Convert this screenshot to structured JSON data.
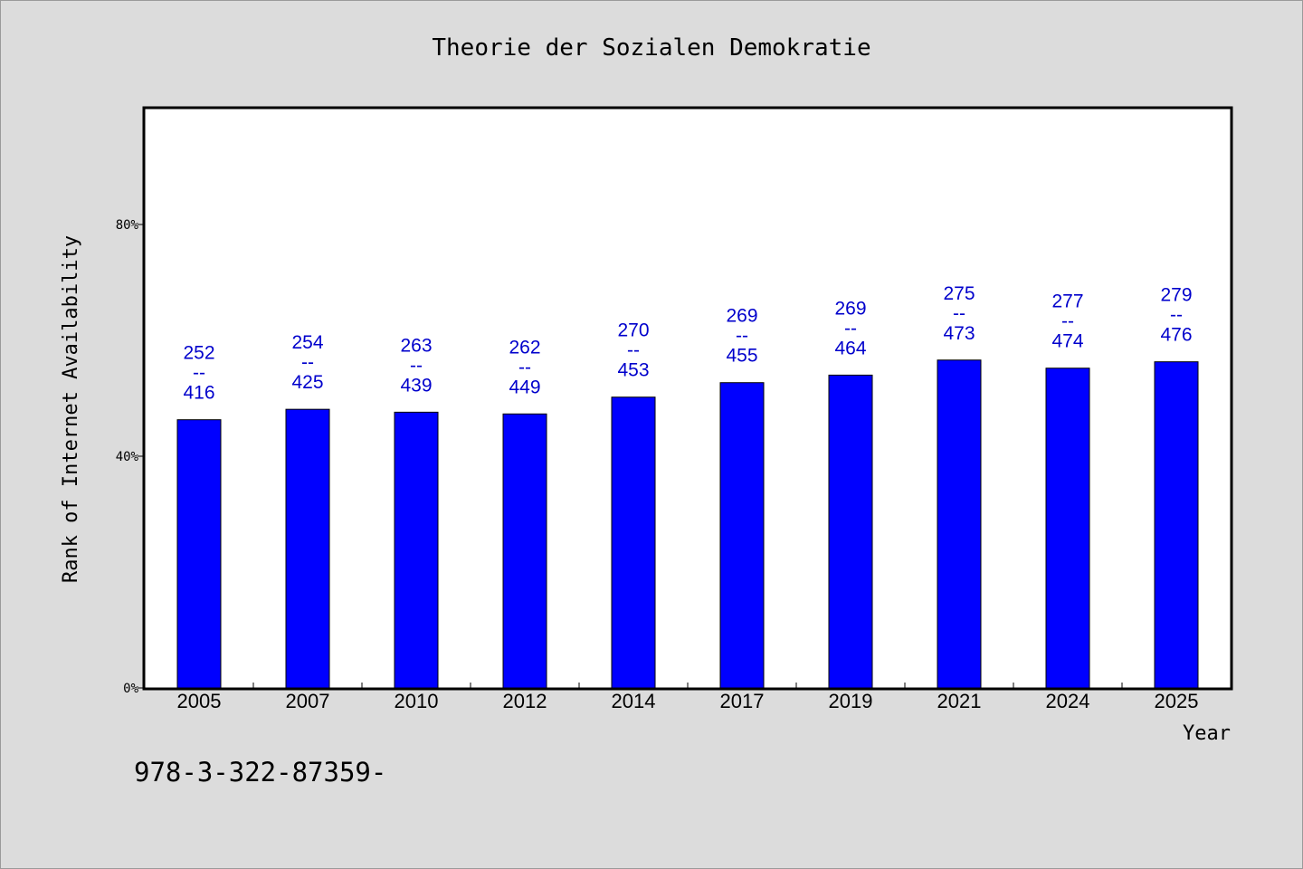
{
  "chart_data": {
    "type": "bar",
    "title": "Theorie der Sozialen Demokratie",
    "xlabel": "Year",
    "ylabel": "Rank of Internet Availability",
    "footer": "978-3-322-87359-",
    "categories": [
      "2005",
      "2007",
      "2010",
      "2012",
      "2014",
      "2017",
      "2019",
      "2021",
      "2024",
      "2025"
    ],
    "values": [
      46.3,
      48.1,
      47.6,
      47.3,
      50.2,
      52.7,
      54.0,
      56.6,
      55.2,
      56.3
    ],
    "label_top": [
      "252",
      "254",
      "263",
      "262",
      "270",
      "269",
      "269",
      "275",
      "277",
      "279"
    ],
    "label_sep": [
      "--",
      "--",
      "--",
      "--",
      "--",
      "--",
      "--",
      "--",
      "--",
      "--"
    ],
    "label_bottom": [
      "416",
      "425",
      "439",
      "449",
      "453",
      "455",
      "464",
      "473",
      "474",
      "476"
    ],
    "yticks": [
      0,
      40,
      80
    ],
    "ytick_labels": [
      "0%",
      "40%",
      "80%"
    ],
    "ylim": [
      0,
      100
    ],
    "grid": false,
    "colors": {
      "bar": "#0000ff",
      "label": "#0000cc",
      "background": "#dcdcdc",
      "plot": "#ffffff"
    }
  }
}
